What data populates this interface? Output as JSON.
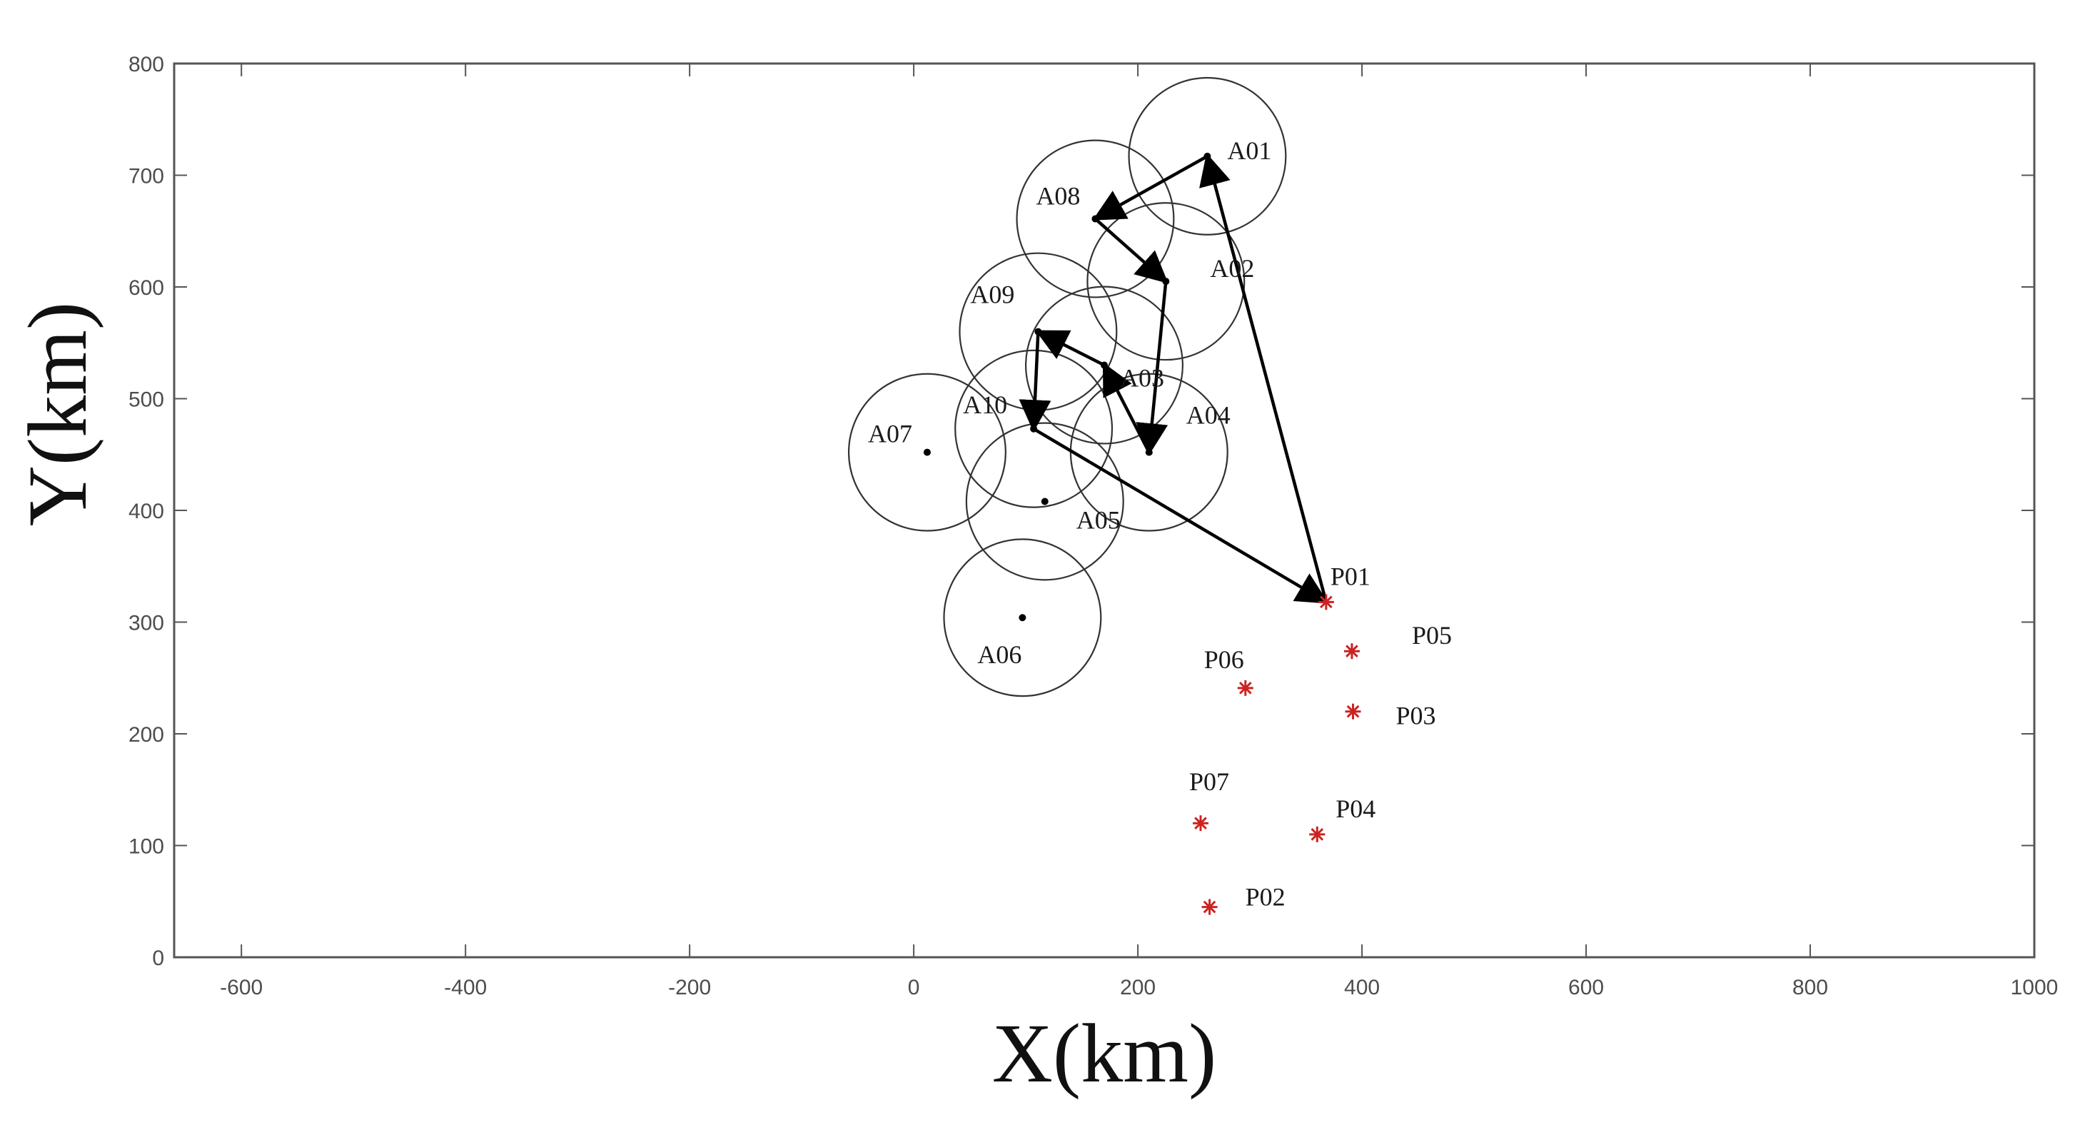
{
  "chart_data": {
    "type": "scatter",
    "xlabel": "X(km)",
    "ylabel": "Y(km)",
    "xlim": [
      -660,
      1000
    ],
    "ylim": [
      0,
      800
    ],
    "xticks": [
      -600,
      -400,
      -200,
      0,
      200,
      400,
      600,
      800,
      1000
    ],
    "yticks": [
      0,
      100,
      200,
      300,
      400,
      500,
      600,
      700,
      800
    ],
    "grid": false,
    "circle_radius_km": 70,
    "series": [
      {
        "name": "",
        "marker": "dot",
        "color": "#000000",
        "points": [
          {
            "label": "A01",
            "x": 262,
            "y": 717
          },
          {
            "label": "A02",
            "x": 225,
            "y": 605
          },
          {
            "label": "A03",
            "x": 170,
            "y": 530
          },
          {
            "label": "A04",
            "x": 210,
            "y": 452
          },
          {
            "label": "A05",
            "x": 117,
            "y": 408
          },
          {
            "label": "A06",
            "x": 97,
            "y": 304
          },
          {
            "label": "A07",
            "x": 12,
            "y": 452
          },
          {
            "label": "A08",
            "x": 162,
            "y": 661
          },
          {
            "label": "A09",
            "x": 111,
            "y": 560
          },
          {
            "label": "A10",
            "x": 107,
            "y": 473
          }
        ]
      },
      {
        "name": "",
        "marker": "asterisk",
        "color": "#cc2222",
        "points": [
          {
            "label": "P01",
            "x": 368,
            "y": 318
          },
          {
            "label": "P02",
            "x": 264,
            "y": 45
          },
          {
            "label": "P03",
            "x": 392,
            "y": 220
          },
          {
            "label": "P04",
            "x": 360,
            "y": 110
          },
          {
            "label": "P05",
            "x": 391,
            "y": 274
          },
          {
            "label": "P06",
            "x": 296,
            "y": 241
          },
          {
            "label": "P07",
            "x": 256,
            "y": 120
          }
        ]
      }
    ],
    "route": [
      {
        "x": 368,
        "y": 318
      },
      {
        "x": 262,
        "y": 717
      },
      {
        "x": 162,
        "y": 661
      },
      {
        "x": 225,
        "y": 605
      },
      {
        "x": 210,
        "y": 452
      },
      {
        "x": 170,
        "y": 530
      },
      {
        "x": 111,
        "y": 560
      },
      {
        "x": 107,
        "y": 473
      },
      {
        "x": 368,
        "y": 318
      }
    ]
  }
}
